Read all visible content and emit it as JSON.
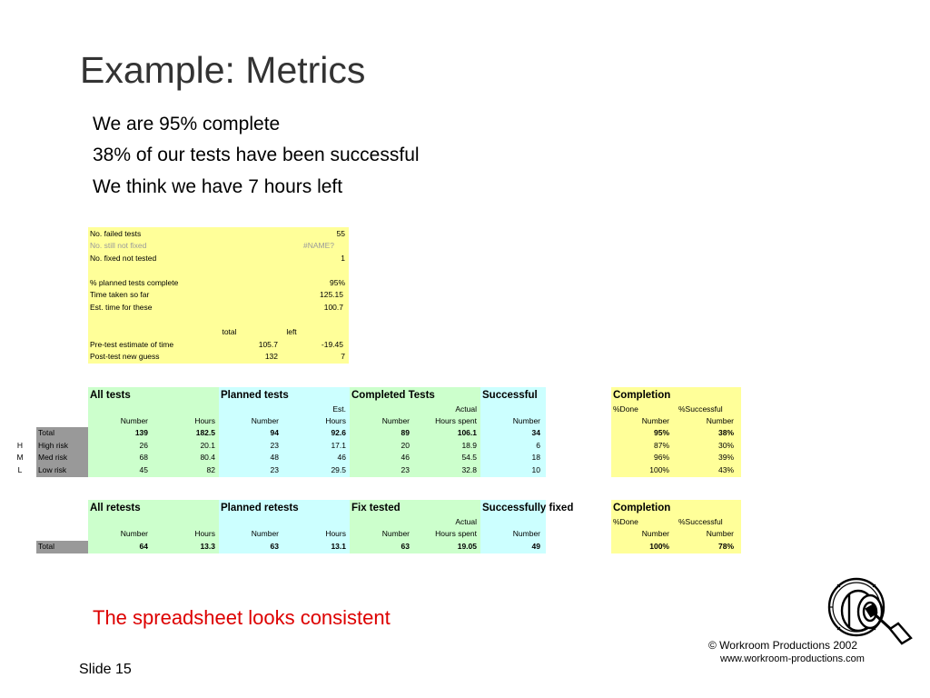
{
  "slide": {
    "title": "Example: Metrics",
    "bullets": [
      "We are 95% complete",
      "38% of our tests have been successful",
      "We think we have 7 hours left"
    ],
    "footnote": "The spreadsheet looks consistent",
    "slide_number": "Slide 15",
    "copyright": "© Workroom Productions 2002",
    "website": "www.workroom-productions.com"
  },
  "summary": {
    "failed_label": "No. failed tests",
    "failed_value": "55",
    "still_label": "No. still not fixed",
    "still_value": "#NAME?",
    "fixed_label": "No. fixed not tested",
    "fixed_value": "1",
    "planned_label": "% planned tests complete",
    "planned_value": "95%",
    "time_label": "Time taken so far",
    "time_value": "125.15",
    "est_label": "Est. time for these",
    "est_value": "100.7",
    "col_total": "total",
    "col_left": "left",
    "pre_label": "Pre-test estimate of time",
    "pre_total": "105.7",
    "pre_left": "-19.45",
    "post_label": "Post-test new guess",
    "post_total": "132",
    "post_left": "7"
  },
  "tests": {
    "groups": [
      "All tests",
      "Planned tests",
      "Completed Tests",
      "Successful",
      "Completion"
    ],
    "sub1": {
      "est": "Est.",
      "actual": "Actual",
      "done": "%Done",
      "succ": "%Successful"
    },
    "sub2": [
      "Number",
      "Hours",
      "Number",
      "Hours",
      "Number",
      "Hours spent",
      "Number",
      "Number",
      "Number"
    ],
    "rows": [
      {
        "code": "",
        "label": "Total",
        "cells": [
          "139",
          "182.5",
          "94",
          "92.6",
          "89",
          "106.1",
          "34",
          "95%",
          "38%"
        ]
      },
      {
        "code": "H",
        "label": "High risk",
        "cells": [
          "26",
          "20.1",
          "23",
          "17.1",
          "20",
          "18.9",
          "6",
          "87%",
          "30%"
        ]
      },
      {
        "code": "M",
        "label": "Med risk",
        "cells": [
          "68",
          "80.4",
          "48",
          "46",
          "46",
          "54.5",
          "18",
          "96%",
          "39%"
        ]
      },
      {
        "code": "L",
        "label": "Low risk",
        "cells": [
          "45",
          "82",
          "23",
          "29.5",
          "23",
          "32.8",
          "10",
          "100%",
          "43%"
        ]
      }
    ]
  },
  "retests": {
    "groups": [
      "All retests",
      "Planned retests",
      "Fix tested",
      "Successfully fixed",
      "Completion"
    ],
    "sub1": {
      "actual": "Actual",
      "done": "%Done",
      "succ": "%Successful"
    },
    "sub2": [
      "Number",
      "Hours",
      "Number",
      "Hours",
      "Number",
      "Hours spent",
      "Number",
      "Number",
      "Number"
    ],
    "rows": [
      {
        "label": "Total",
        "cells": [
          "64",
          "13.3",
          "63",
          "13.1",
          "63",
          "19.05",
          "49",
          "100%",
          "78%"
        ]
      }
    ]
  }
}
